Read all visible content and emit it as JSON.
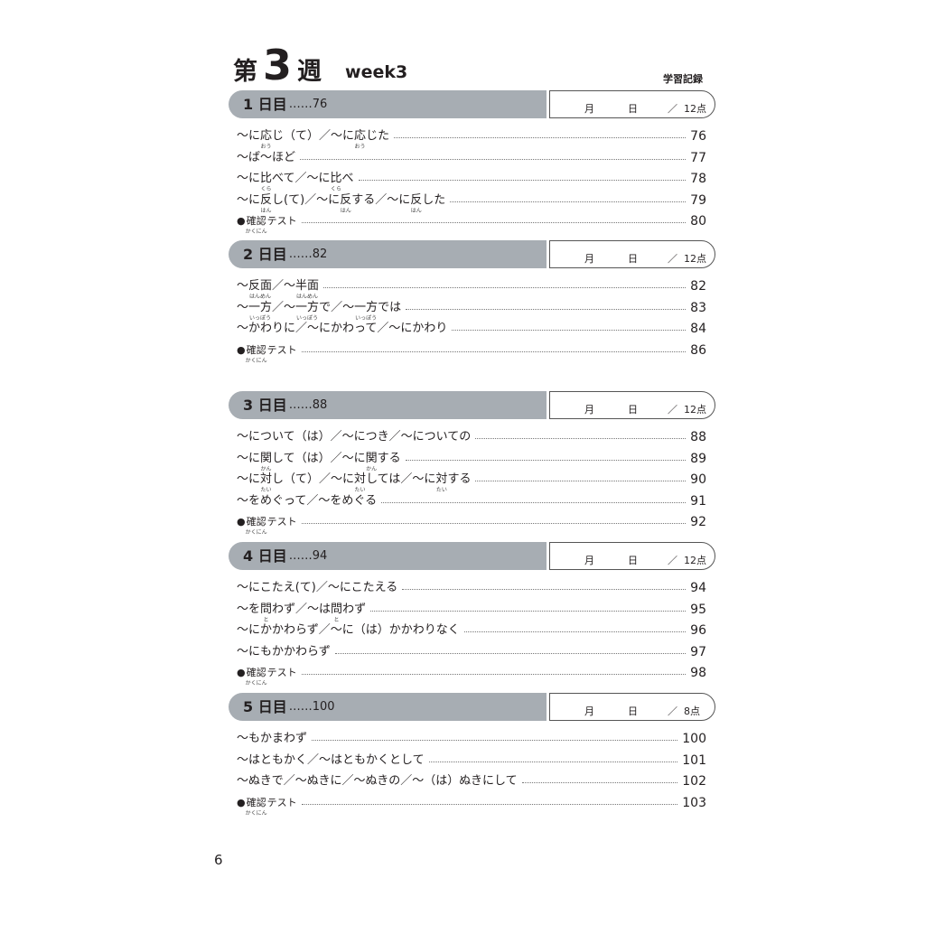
{
  "header": {
    "kanji_pre": "第",
    "week_num": "3",
    "kanji_post": "週",
    "week_en": "week3",
    "record_label": "学習記録"
  },
  "record": {
    "month": "月",
    "day": "日",
    "slash": "／"
  },
  "sections": [
    {
      "day": "1 日目",
      "page": "……76",
      "score": "12点",
      "items": [
        {
          "parts": [
            {
              "t": "〜に"
            },
            {
              "t": "応",
              "r": "おう"
            },
            {
              "t": "じ（て）／〜に"
            },
            {
              "t": "応",
              "r": "おう"
            },
            {
              "t": "じた"
            }
          ],
          "page": "76"
        },
        {
          "parts": [
            {
              "t": "〜ば〜ほど"
            }
          ],
          "page": "77"
        },
        {
          "parts": [
            {
              "t": "〜に"
            },
            {
              "t": "比",
              "r": "くら"
            },
            {
              "t": "べて／〜に"
            },
            {
              "t": "比",
              "r": "くら"
            },
            {
              "t": "べ"
            }
          ],
          "page": "78"
        },
        {
          "parts": [
            {
              "t": "〜に"
            },
            {
              "t": "反",
              "r": "はん"
            },
            {
              "t": "し(て)／〜に"
            },
            {
              "t": "反",
              "r": "はん"
            },
            {
              "t": "する／〜に"
            },
            {
              "t": "反",
              "r": "はん"
            },
            {
              "t": "した"
            }
          ],
          "page": "79"
        },
        {
          "test": true,
          "parts": [
            {
              "t": "●"
            },
            {
              "t": "確認",
              "r": "かくにん"
            },
            {
              "t": "テスト"
            }
          ],
          "page": "80"
        }
      ]
    },
    {
      "day": "2 日目",
      "page": "……82",
      "score": "12点",
      "items": [
        {
          "parts": [
            {
              "t": "〜"
            },
            {
              "t": "反面",
              "r": "はんめん"
            },
            {
              "t": "／〜"
            },
            {
              "t": "半面",
              "r": "はんめん"
            }
          ],
          "page": "82"
        },
        {
          "parts": [
            {
              "t": "〜"
            },
            {
              "t": "一方",
              "r": "いっぽう"
            },
            {
              "t": "／〜"
            },
            {
              "t": "一方",
              "r": "いっぽう"
            },
            {
              "t": "で／〜"
            },
            {
              "t": "一方",
              "r": "いっぽう"
            },
            {
              "t": "では"
            }
          ],
          "page": "83"
        },
        {
          "parts": [
            {
              "t": "〜かわりに／〜にかわって／〜にかわり"
            }
          ],
          "page": "84"
        },
        {
          "test": true,
          "parts": [
            {
              "t": "●"
            },
            {
              "t": "確認",
              "r": "かくにん"
            },
            {
              "t": "テスト"
            }
          ],
          "page": "86"
        }
      ]
    },
    {
      "day": "3 日目",
      "page": "……88",
      "score": "12点",
      "items": [
        {
          "parts": [
            {
              "t": "〜について（は）／〜につき／〜についての"
            }
          ],
          "page": "88"
        },
        {
          "parts": [
            {
              "t": "〜に"
            },
            {
              "t": "関",
              "r": "かん"
            },
            {
              "t": "して（は）／〜に"
            },
            {
              "t": "関",
              "r": "かん"
            },
            {
              "t": "する"
            }
          ],
          "page": "89"
        },
        {
          "parts": [
            {
              "t": "〜に"
            },
            {
              "t": "対",
              "r": "たい"
            },
            {
              "t": "し（て）／〜に"
            },
            {
              "t": "対",
              "r": "たい"
            },
            {
              "t": "しては／〜に"
            },
            {
              "t": "対",
              "r": "たい"
            },
            {
              "t": "する"
            }
          ],
          "page": "90"
        },
        {
          "parts": [
            {
              "t": "〜をめぐって／〜をめぐる"
            }
          ],
          "page": "91"
        },
        {
          "test": true,
          "parts": [
            {
              "t": "●"
            },
            {
              "t": "確認",
              "r": "かくにん"
            },
            {
              "t": "テスト"
            }
          ],
          "page": "92"
        }
      ]
    },
    {
      "day": "4 日目",
      "page": "……94",
      "score": "12点",
      "items": [
        {
          "parts": [
            {
              "t": "〜にこたえ(て)／〜にこたえる"
            }
          ],
          "page": "94"
        },
        {
          "parts": [
            {
              "t": "〜を"
            },
            {
              "t": "問",
              "r": "と"
            },
            {
              "t": "わず／〜は"
            },
            {
              "t": "問",
              "r": "と"
            },
            {
              "t": "わず"
            }
          ],
          "page": "95"
        },
        {
          "parts": [
            {
              "t": "〜にかかわらず／〜に（は）かかわりなく"
            }
          ],
          "page": "96"
        },
        {
          "parts": [
            {
              "t": "〜にもかかわらず"
            }
          ],
          "page": "97"
        },
        {
          "test": true,
          "parts": [
            {
              "t": "●"
            },
            {
              "t": "確認",
              "r": "かくにん"
            },
            {
              "t": "テスト"
            }
          ],
          "page": "98"
        }
      ]
    },
    {
      "day": "5 日目",
      "page": "……100",
      "score": "8点",
      "items": [
        {
          "parts": [
            {
              "t": "〜もかまわず"
            }
          ],
          "page": "100"
        },
        {
          "parts": [
            {
              "t": "〜はともかく／〜はともかくとして"
            }
          ],
          "page": "101"
        },
        {
          "parts": [
            {
              "t": "〜ぬきで／〜ぬきに／〜ぬきの／〜（は）ぬきにして"
            }
          ],
          "page": "102"
        },
        {
          "test": true,
          "parts": [
            {
              "t": "●"
            },
            {
              "t": "確認",
              "r": "かくにん"
            },
            {
              "t": "テスト"
            }
          ],
          "page": "103"
        }
      ]
    }
  ],
  "page_number": "6"
}
